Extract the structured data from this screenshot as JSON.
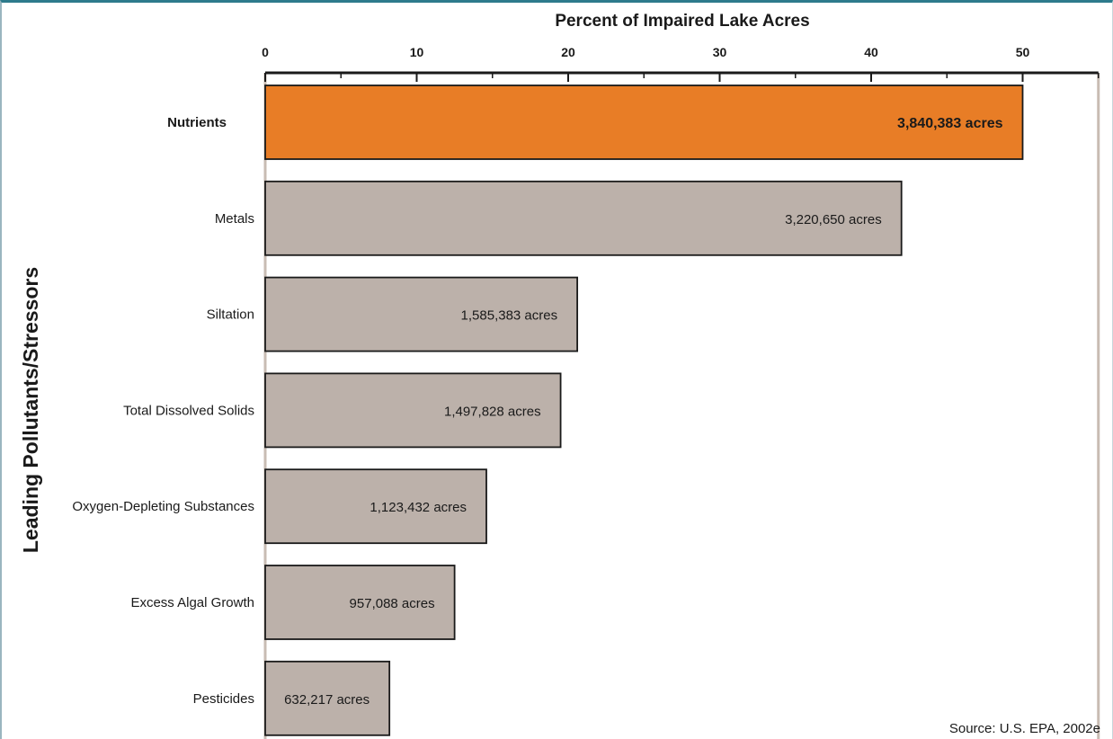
{
  "chart_data": {
    "type": "bar",
    "orientation": "horizontal",
    "title": "",
    "xlabel": "Percent of Impaired Lake Acres",
    "ylabel": "Leading Pollutants/Stressors",
    "xlim": [
      0,
      55
    ],
    "xticks": [
      0,
      10,
      20,
      30,
      40,
      50
    ],
    "categories": [
      "Nutrients",
      "Metals",
      "Siltation",
      "Total Dissolved Solids",
      "Oxygen-Depleting Substances",
      "Excess Algal Growth",
      "Pesticides"
    ],
    "values": [
      50,
      42,
      20.6,
      19.5,
      14.6,
      12.5,
      8.2
    ],
    "data_labels": [
      "3,840,383 acres",
      "3,220,650 acres",
      "1,585,383 acres",
      "1,497,828 acres",
      "1,123,432 acres",
      "957,088 acres",
      "632,217 acres"
    ],
    "highlight_index": 0,
    "colors": {
      "highlight": "#e87d26",
      "bar": "#bcb1aa",
      "bar_outline": "#1a1a1a",
      "axis": "#1a1a1a",
      "gridline": "#c8bcb3"
    },
    "grid": false,
    "legend": "none",
    "source": "Source: U.S. EPA, 2002e"
  }
}
